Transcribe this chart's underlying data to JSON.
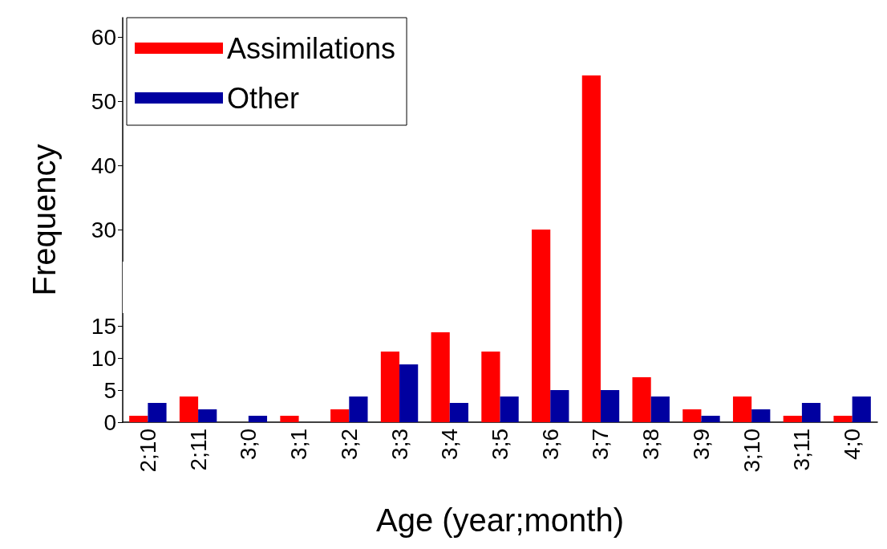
{
  "chart_data": {
    "type": "bar",
    "xlabel": "Age (year;month)",
    "ylabel": "Frequency",
    "categories": [
      "2;10",
      "2;11",
      "3;0",
      "3;1",
      "3;2",
      "3;3",
      "3;4",
      "3;5",
      "3;6",
      "3;7",
      "3;8",
      "3;9",
      "3;10",
      "3;11",
      "4;0"
    ],
    "series": [
      {
        "name": "Assimilations",
        "color": "#ff0000",
        "values": [
          1,
          4,
          0,
          1,
          2,
          11,
          14,
          11,
          30,
          54,
          7,
          2,
          4,
          1,
          1
        ]
      },
      {
        "name": "Other",
        "color": "#0000a0",
        "values": [
          3,
          2,
          1,
          0,
          4,
          9,
          3,
          4,
          5,
          5,
          4,
          1,
          2,
          3,
          4
        ]
      }
    ],
    "ylim": [
      0,
      63
    ],
    "yticks": [
      0,
      5,
      10,
      15,
      30,
      40,
      50,
      60
    ],
    "bands": [
      {
        "axis": "y",
        "from": 17,
        "to": 25,
        "color": "#ffffff"
      }
    ],
    "grid": false,
    "legend": "top left"
  }
}
